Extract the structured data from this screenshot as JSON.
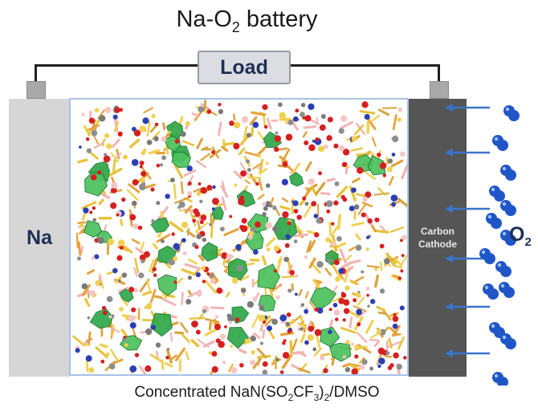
{
  "title": {
    "main": "Na-O",
    "sub": "2",
    "tail": " battery"
  },
  "load": {
    "label": "Load"
  },
  "anode": {
    "label": "Na"
  },
  "cathode": {
    "line1": "Carbon",
    "line2": "Cathode"
  },
  "oxygen": {
    "main": "O",
    "sub": "2"
  },
  "caption": {
    "part1": "Concentrated NaN(SO",
    "sub1": "2",
    "part2": "CF",
    "sub2": "3",
    "part3": ")",
    "sub3": "2",
    "part4": "/DMSO"
  },
  "colors": {
    "anode": "#d6d6d6",
    "cathode": "#555555",
    "wire": "#1f1f1f",
    "text_dark_blue": "#1f2f55",
    "arrow_blue": "#3b74c9",
    "molecule_blue": "#1f56c7",
    "electrolyte_border": "#a7c2e6"
  }
}
